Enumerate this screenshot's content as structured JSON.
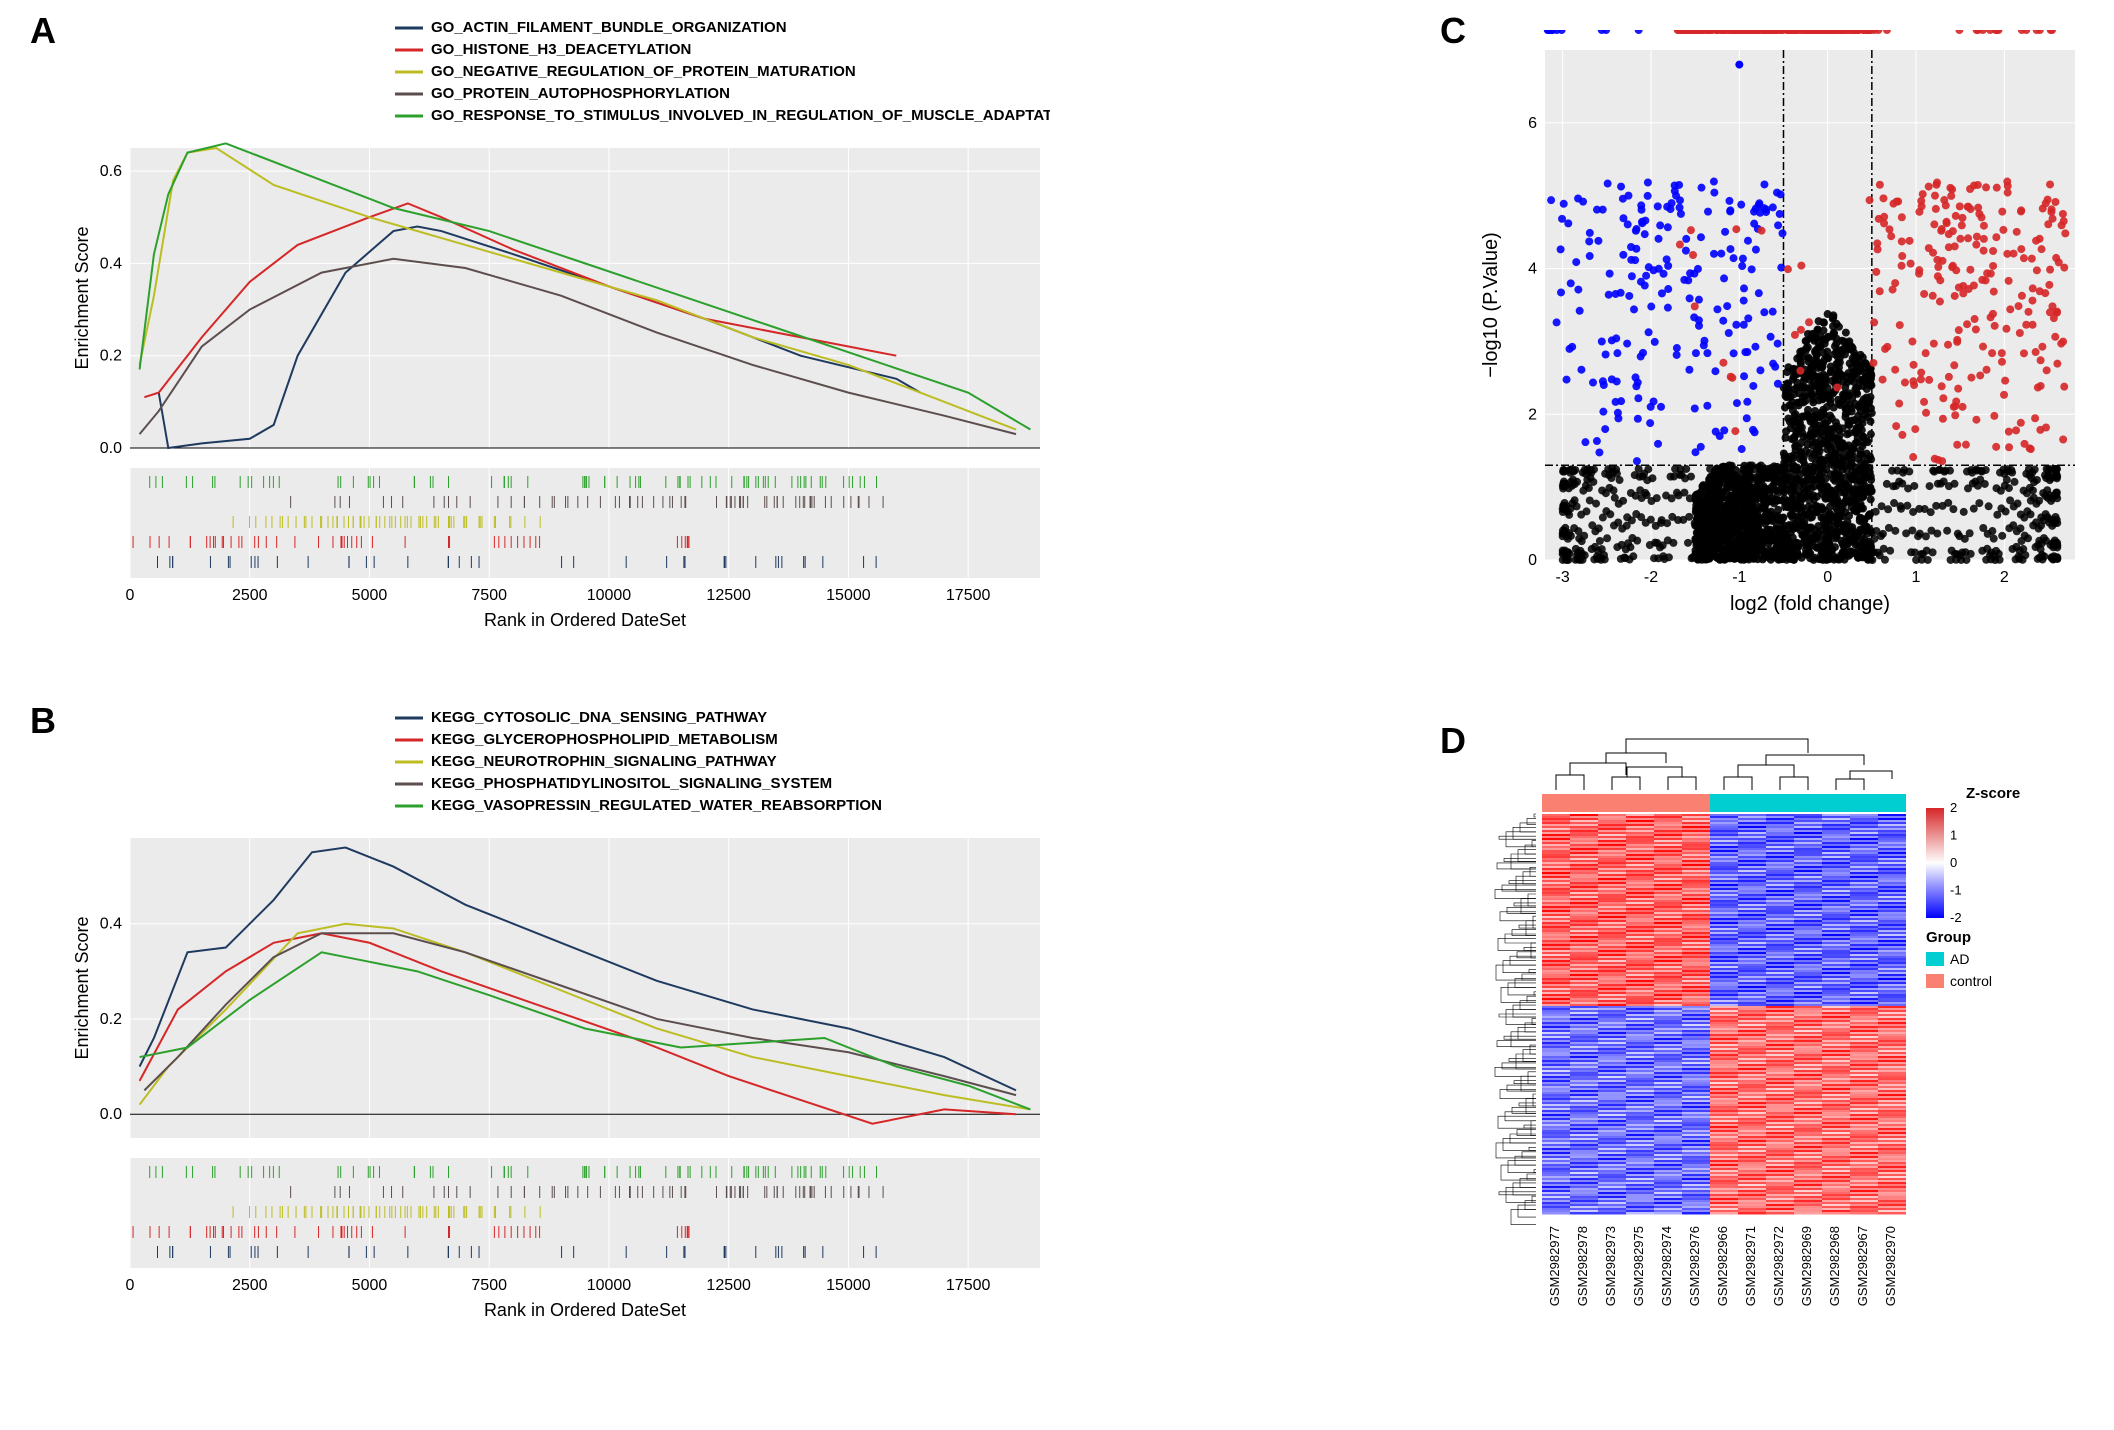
{
  "panelA": {
    "label": "A",
    "type": "line",
    "ylabel": "Enrichment Score",
    "xlabel": "Rank in Ordered DateSet",
    "xlim": [
      0,
      19000
    ],
    "ylim": [
      0.0,
      0.65
    ],
    "xticks": [
      0,
      2500,
      5000,
      7500,
      10000,
      12500,
      15000,
      17500
    ],
    "yticks": [
      0.0,
      0.2,
      0.4,
      0.6
    ],
    "background": "#ebebeb",
    "grid_color": "#ffffff",
    "line_width": 2,
    "series": [
      {
        "label": "GO_ACTIN_FILAMENT_BUNDLE_ORGANIZATION",
        "color": "#1e3a5f",
        "x": [
          600,
          800,
          1500,
          2500,
          3000,
          3500,
          4500,
          5500,
          6000,
          6500,
          8000,
          10000,
          12000,
          14000,
          16000,
          16500
        ],
        "y": [
          0.12,
          0.0,
          0.01,
          0.02,
          0.05,
          0.2,
          0.38,
          0.47,
          0.48,
          0.47,
          0.42,
          0.35,
          0.28,
          0.2,
          0.15,
          0.12
        ]
      },
      {
        "label": "GO_HISTONE_H3_DEACETYLATION",
        "color": "#d62728",
        "x": [
          300,
          600,
          1500,
          2500,
          3500,
          5000,
          5800,
          6500,
          8000,
          10000,
          12000,
          14000,
          16000
        ],
        "y": [
          0.11,
          0.12,
          0.24,
          0.36,
          0.44,
          0.5,
          0.53,
          0.5,
          0.43,
          0.35,
          0.28,
          0.24,
          0.2
        ]
      },
      {
        "label": "GO_NEGATIVE_REGULATION_OF_PROTEIN_MATURATION",
        "color": "#bcbd22",
        "x": [
          200,
          500,
          900,
          1200,
          1800,
          3000,
          5000,
          7000,
          9000,
          11000,
          13000,
          15000,
          17000,
          18500
        ],
        "y": [
          0.18,
          0.33,
          0.58,
          0.64,
          0.65,
          0.57,
          0.5,
          0.44,
          0.38,
          0.32,
          0.24,
          0.18,
          0.1,
          0.04
        ]
      },
      {
        "label": "GO_PROTEIN_AUTOPHOSPHORYLATION",
        "color": "#5d4e4e",
        "x": [
          200,
          600,
          1500,
          2500,
          4000,
          5500,
          7000,
          9000,
          11000,
          13000,
          15000,
          17000,
          18500
        ],
        "y": [
          0.03,
          0.08,
          0.22,
          0.3,
          0.38,
          0.41,
          0.39,
          0.33,
          0.25,
          0.18,
          0.12,
          0.07,
          0.03
        ]
      },
      {
        "label": "GO_RESPONSE_TO_STIMULUS_INVOLVED_IN_REGULATION_OF_MUSCLE_ADAPTATION",
        "color": "#2ca02c",
        "x": [
          200,
          500,
          800,
          1200,
          2000,
          3500,
          5500,
          7500,
          9500,
          11500,
          13500,
          15500,
          17500,
          18800
        ],
        "y": [
          0.17,
          0.42,
          0.55,
          0.64,
          0.66,
          0.6,
          0.52,
          0.47,
          0.4,
          0.33,
          0.26,
          0.19,
          0.12,
          0.04
        ]
      }
    ]
  },
  "panelB": {
    "label": "B",
    "type": "line",
    "ylabel": "Enrichment Score",
    "xlabel": "Rank in Ordered DateSet",
    "xlim": [
      0,
      19000
    ],
    "ylim": [
      -0.05,
      0.58
    ],
    "xticks": [
      0,
      2500,
      5000,
      7500,
      10000,
      12500,
      15000,
      17500
    ],
    "yticks": [
      0.0,
      0.2,
      0.4
    ],
    "background": "#ebebeb",
    "grid_color": "#ffffff",
    "line_width": 2,
    "series": [
      {
        "label": "KEGG_CYTOSOLIC_DNA_SENSING_PATHWAY",
        "color": "#1e3a5f",
        "x": [
          200,
          500,
          1200,
          2000,
          3000,
          3800,
          4500,
          5500,
          7000,
          9000,
          11000,
          13000,
          15000,
          17000,
          18500
        ],
        "y": [
          0.1,
          0.16,
          0.34,
          0.35,
          0.45,
          0.55,
          0.56,
          0.52,
          0.44,
          0.36,
          0.28,
          0.22,
          0.18,
          0.12,
          0.05
        ]
      },
      {
        "label": "KEGG_GLYCEROPHOSPHOLIPID_METABOLISM",
        "color": "#d62728",
        "x": [
          200,
          1000,
          2000,
          3000,
          4000,
          5000,
          6500,
          8500,
          10500,
          12500,
          14000,
          15500,
          17000,
          18500
        ],
        "y": [
          0.07,
          0.22,
          0.3,
          0.36,
          0.38,
          0.36,
          0.3,
          0.23,
          0.16,
          0.08,
          0.03,
          -0.02,
          0.01,
          0.0
        ]
      },
      {
        "label": "KEGG_NEUROTROPHIN_SIGNALING_PATHWAY",
        "color": "#bcbd22",
        "x": [
          200,
          800,
          2000,
          3500,
          4500,
          5500,
          7000,
          9000,
          11000,
          13000,
          15000,
          17000,
          18800
        ],
        "y": [
          0.02,
          0.1,
          0.22,
          0.38,
          0.4,
          0.39,
          0.34,
          0.26,
          0.18,
          0.12,
          0.08,
          0.04,
          0.01
        ]
      },
      {
        "label": "KEGG_PHOSPHATIDYLINOSITOL_SIGNALING_SYSTEM",
        "color": "#5d4e4e",
        "x": [
          300,
          1000,
          2000,
          3000,
          4000,
          5500,
          7000,
          9000,
          11000,
          13000,
          15000,
          17000,
          18500
        ],
        "y": [
          0.05,
          0.12,
          0.23,
          0.33,
          0.38,
          0.38,
          0.34,
          0.27,
          0.2,
          0.16,
          0.13,
          0.08,
          0.04
        ]
      },
      {
        "label": "KEGG_VASOPRESSIN_REGULATED_WATER_REABSORPTION",
        "color": "#2ca02c",
        "x": [
          200,
          1200,
          2500,
          4000,
          5000,
          6000,
          7500,
          9500,
          11500,
          13000,
          14500,
          16000,
          17500,
          18800
        ],
        "y": [
          0.12,
          0.14,
          0.24,
          0.34,
          0.32,
          0.3,
          0.25,
          0.18,
          0.14,
          0.15,
          0.16,
          0.1,
          0.06,
          0.01
        ]
      }
    ]
  },
  "panelC": {
    "label": "C",
    "type": "scatter",
    "xlabel": "log2 (fold change)",
    "ylabel": "−log10 (P.Value)",
    "xlim": [
      -3.2,
      2.8
    ],
    "ylim": [
      0,
      7
    ],
    "xticks": [
      -3,
      -2,
      -1,
      0,
      1,
      2
    ],
    "yticks": [
      0,
      2,
      4,
      6
    ],
    "vline_x": [
      -0.5,
      0.5
    ],
    "hline_y": 1.3,
    "colors": {
      "down": "#0000ff",
      "up": "#d62728",
      "ns": "#000000"
    },
    "background": "#ebebeb",
    "grid_color": "#ffffff",
    "point_size": 4,
    "n_down": 450,
    "n_up": 500,
    "n_ns": 2000
  },
  "panelD": {
    "label": "D",
    "type": "heatmap",
    "samples": [
      "GSM2982977",
      "GSM2982978",
      "GSM2982973",
      "GSM2982975",
      "GSM2982974",
      "GSM2982976",
      "GSM2982966",
      "GSM2982971",
      "GSM2982972",
      "GSM2982969",
      "GSM2982968",
      "GSM2982967",
      "GSM2982970"
    ],
    "groups": [
      "control",
      "control",
      "control",
      "control",
      "control",
      "control",
      "AD",
      "AD",
      "AD",
      "AD",
      "AD",
      "AD",
      "AD"
    ],
    "group_colors": {
      "AD": "#00CED1",
      "control": "#FA8072"
    },
    "zscore_label": "Z-score",
    "group_label": "Group",
    "colorbar": {
      "min": -2,
      "max": 2,
      "ticks": [
        -2,
        -1,
        0,
        1,
        2
      ],
      "low": "#0000ff",
      "mid": "#ffffff",
      "high": "#d62728"
    },
    "n_rows": 200
  }
}
